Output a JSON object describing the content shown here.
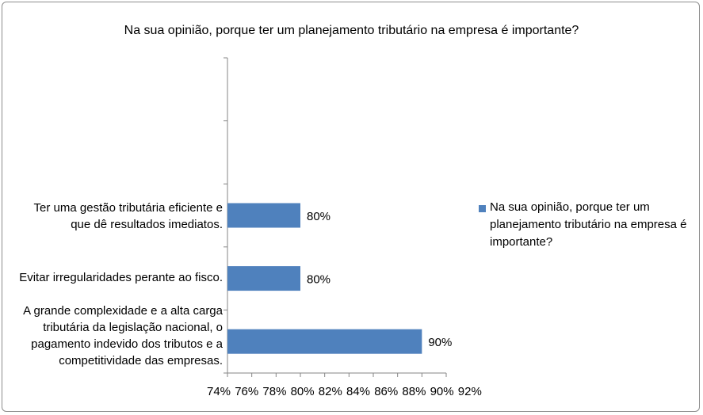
{
  "chart_data": {
    "type": "bar",
    "orientation": "horizontal",
    "title": "Na sua opinião, porque ter um planejamento tributário na empresa é importante?",
    "categories": [
      "Ter uma gestão tributária eficiente e que dê resultados imediatos.",
      "Evitar irregularidades perante ao fisco.",
      "A grande complexidade e a alta carga tributária da legislação nacional, o pagamento indevido dos tributos e a competitividade das empresas."
    ],
    "category_lines": [
      [
        "Ter uma gestão tributária eficiente e",
        "que dê resultados imediatos."
      ],
      [
        "Evitar irregularidades perante ao fisco."
      ],
      [
        "A grande complexidade e a alta carga",
        "tributária da legislação nacional, o",
        "pagamento indevido dos tributos e a",
        "competitividade das empresas."
      ]
    ],
    "series": [
      {
        "name": "Na sua opinião, porque ter um planejamento tributário na empresa é importante?",
        "values": [
          80,
          80,
          90
        ],
        "data_labels": [
          "80%",
          "80%",
          "90%"
        ]
      }
    ],
    "xlim": [
      74,
      92
    ],
    "xticks": [
      "74%",
      "76%",
      "78%",
      "80%",
      "82%",
      "84%",
      "86%",
      "88%",
      "90%",
      "92%"
    ],
    "legend_position": "right",
    "grid": false,
    "bar_color": "#4f81bd"
  }
}
